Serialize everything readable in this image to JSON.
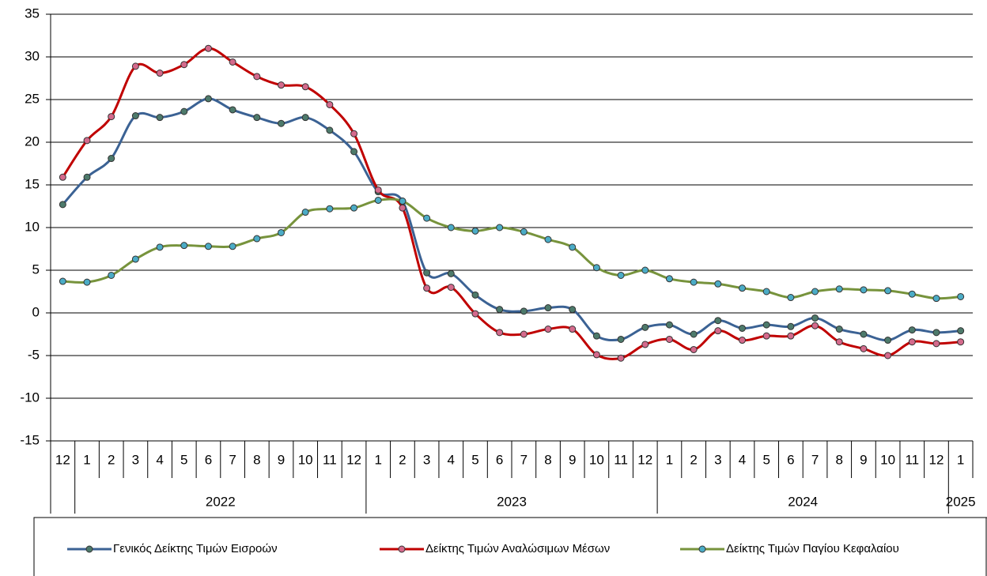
{
  "chart_data": {
    "type": "line",
    "category_groups": [
      {
        "label": null,
        "categories": [
          "12"
        ]
      },
      {
        "label": "2022",
        "categories": [
          "1",
          "2",
          "3",
          "4",
          "5",
          "6",
          "7",
          "8",
          "9",
          "10",
          "11",
          "12"
        ]
      },
      {
        "label": "2023",
        "categories": [
          "1",
          "2",
          "3",
          "4",
          "5",
          "6",
          "7",
          "8",
          "9",
          "10",
          "11",
          "12"
        ]
      },
      {
        "label": "2024",
        "categories": [
          "1",
          "2",
          "3",
          "4",
          "5",
          "6",
          "7",
          "8",
          "9",
          "10",
          "11",
          "12"
        ]
      },
      {
        "label": "2025",
        "categories": [
          "1"
        ]
      }
    ],
    "series": [
      {
        "name": "Γενικός Δείκτης Τιμών Εισροών",
        "color": "#3b6294",
        "marker_color": "#4d7a6b",
        "values": [
          12.7,
          15.9,
          18.1,
          23.1,
          22.9,
          23.6,
          25.1,
          23.8,
          22.9,
          22.2,
          22.9,
          21.4,
          18.9,
          14.2,
          13.1,
          4.7,
          4.6,
          2.1,
          0.4,
          0.2,
          0.6,
          0.4,
          -2.7,
          -3.1,
          -1.7,
          -1.4,
          -2.5,
          -0.9,
          -1.8,
          -1.4,
          -1.6,
          -0.6,
          -1.9,
          -2.5,
          -3.2,
          -2.0,
          -2.3,
          -2.1
        ]
      },
      {
        "name": "Δείκτης Τιμών Αναλώσιμων Μέσων",
        "color": "#c00000",
        "marker_color": "#d46a8c",
        "values": [
          15.9,
          20.2,
          23.0,
          28.9,
          28.1,
          29.1,
          31.0,
          29.4,
          27.7,
          26.7,
          26.5,
          24.4,
          21.0,
          14.4,
          12.3,
          2.9,
          3.0,
          -0.1,
          -2.3,
          -2.5,
          -1.9,
          -1.9,
          -4.9,
          -5.3,
          -3.7,
          -3.1,
          -4.3,
          -2.1,
          -3.2,
          -2.7,
          -2.7,
          -1.5,
          -3.4,
          -4.2,
          -5.0,
          -3.4,
          -3.6,
          -3.4
        ]
      },
      {
        "name": "Δείκτης Τιμών Παγίου Κεφαλαίου",
        "color": "#77933c",
        "marker_color": "#4bacc6",
        "values": [
          3.7,
          3.6,
          4.4,
          6.3,
          7.7,
          7.9,
          7.8,
          7.8,
          8.7,
          9.4,
          11.8,
          12.2,
          12.3,
          13.2,
          13.1,
          11.1,
          10.0,
          9.6,
          10.0,
          9.5,
          8.6,
          7.7,
          5.3,
          4.4,
          5.0,
          4.0,
          3.6,
          3.4,
          2.9,
          2.5,
          1.8,
          2.5,
          2.8,
          2.7,
          2.6,
          2.2,
          1.7,
          1.9
        ]
      }
    ],
    "ylim": [
      -15,
      35
    ],
    "yticks": [
      -15,
      -10,
      -5,
      0,
      5,
      10,
      15,
      20,
      25,
      30,
      35
    ],
    "grid": true,
    "smooth": true,
    "legend": "bottom"
  }
}
